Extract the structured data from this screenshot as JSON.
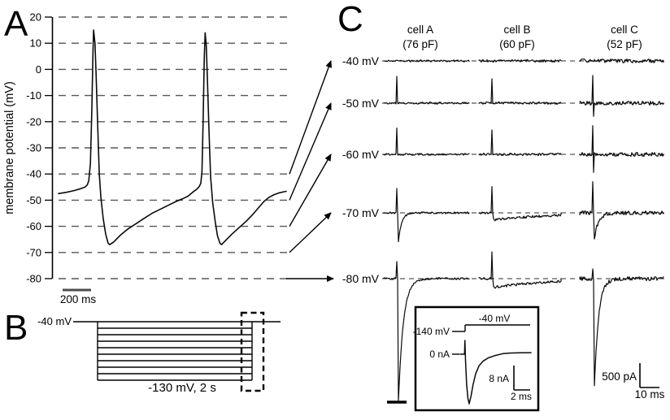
{
  "figure": {
    "panels": [
      {
        "label": "A"
      },
      {
        "label": "B"
      },
      {
        "label": "C"
      }
    ]
  },
  "colors": {
    "ink": "#000000",
    "grid_dash": "#565656",
    "baseline_dash": "#2e2e2e",
    "background": "#ffffff"
  },
  "chart_data": [
    {
      "panel": "A",
      "type": "line",
      "description": "Current-clamp recording of spontaneous action potentials",
      "ylabel": "membrane potential (mV)",
      "yticks": [
        20,
        10,
        0,
        -10,
        -20,
        -30,
        -40,
        -50,
        -60,
        -70,
        -80
      ],
      "ylim": [
        -80,
        20
      ],
      "grid": "dashed horizontal gridlines every 10 mV",
      "x_scalebar_label": "200 ms",
      "trace_units": [
        "percent_of_sweep",
        "mV"
      ],
      "trace": [
        [
          0,
          -47.5
        ],
        [
          3.5,
          -47
        ],
        [
          7,
          -46.3
        ],
        [
          9.8,
          -45.6
        ],
        [
          11.6,
          -45
        ],
        [
          12.6,
          -44.2
        ],
        [
          13.3,
          -42.5
        ],
        [
          14,
          -36
        ],
        [
          14.6,
          -16
        ],
        [
          15.1,
          6
        ],
        [
          15.4,
          15
        ],
        [
          16,
          10
        ],
        [
          16.5,
          -2
        ],
        [
          17.2,
          -22
        ],
        [
          17.9,
          -40
        ],
        [
          18.6,
          -49
        ],
        [
          19.6,
          -57
        ],
        [
          20.7,
          -63
        ],
        [
          21.8,
          -66.5
        ],
        [
          22.5,
          -67
        ],
        [
          24.2,
          -66
        ],
        [
          27,
          -63.5
        ],
        [
          30.5,
          -61
        ],
        [
          34,
          -59
        ],
        [
          37.5,
          -57
        ],
        [
          41.1,
          -55
        ],
        [
          44.6,
          -53.5
        ],
        [
          48.1,
          -52
        ],
        [
          51.6,
          -50.5
        ],
        [
          54.4,
          -49.5
        ],
        [
          56.8,
          -48.5
        ],
        [
          58.9,
          -47
        ],
        [
          60.7,
          -45.8
        ],
        [
          61.8,
          -44.8
        ],
        [
          62.5,
          -43.5
        ],
        [
          63,
          -39
        ],
        [
          63.5,
          -20
        ],
        [
          64,
          4
        ],
        [
          64.4,
          14
        ],
        [
          64.9,
          9
        ],
        [
          65.4,
          -4
        ],
        [
          66.1,
          -24
        ],
        [
          66.8,
          -41
        ],
        [
          67.7,
          -51
        ],
        [
          68.8,
          -58
        ],
        [
          69.8,
          -63.5
        ],
        [
          70.9,
          -66.5
        ],
        [
          71.6,
          -67
        ],
        [
          73.3,
          -65.5
        ],
        [
          76.1,
          -63
        ],
        [
          79.3,
          -60.5
        ],
        [
          82.5,
          -58
        ],
        [
          85.3,
          -55.5
        ],
        [
          87.7,
          -53
        ],
        [
          90.2,
          -50.5
        ],
        [
          92.3,
          -49
        ],
        [
          94.4,
          -48
        ],
        [
          96.5,
          -47.3
        ],
        [
          98.9,
          -46.8
        ],
        [
          100,
          -46.6
        ]
      ]
    },
    {
      "panel": "B",
      "type": "diagram",
      "description": "Voltage-step protocol: 2 s hyperpolarizing steps from -40 mV holding in -10 mV increments to -130 mV; dashed box marks the region expanded in C",
      "holding_label": "-40 mV",
      "holding_mV": -40,
      "step_to_mV_min": -130,
      "step_increment_mV": -10,
      "num_levels": 10,
      "step_duration": "2 s",
      "step_label": "-130 mV, 2 s"
    },
    {
      "panel": "C",
      "type": "line",
      "description": "Whole-cell currents after step offset at five potentials for three cells; capacitive spikes and slow inward tail currents (amplitudes in pA, time constants in ms)",
      "columns": [
        {
          "title": "cell A",
          "capacitance": "(76 pF)"
        },
        {
          "title": "cell B",
          "capacitance": "(60 pF)"
        },
        {
          "title": "cell C",
          "capacitance": "(52 pF)"
        }
      ],
      "scalebar_v_label": "500 pA",
      "scalebar_h_label": "10 ms",
      "rows": [
        {
          "label": "-40 mV",
          "mV": -40,
          "cells": [
            {
              "noise_pA": 20,
              "seed": 11
            },
            {
              "noise_pA": 25,
              "seed": 12
            },
            {
              "noise_pA": 40,
              "seed": 13
            }
          ]
        },
        {
          "label": "-50 mV",
          "mV": -50,
          "cells": [
            {
              "spike_pA": 550,
              "noise_pA": 20,
              "seed": 21
            },
            {
              "spike_pA": 500,
              "noise_pA": 25,
              "seed": 22
            },
            {
              "spike_pA": 570,
              "spikedown_pA": 270,
              "noise_pA": 40,
              "seed": 23
            }
          ]
        },
        {
          "label": "-60 mV",
          "mV": -60,
          "cells": [
            {
              "spike_pA": 540,
              "noise_pA": 20,
              "seed": 31
            },
            {
              "spike_pA": 500,
              "noise_pA": 25,
              "seed": 32
            },
            {
              "spike_pA": 590,
              "spikedown_pA": 370,
              "noise_pA": 40,
              "seed": 33
            }
          ]
        },
        {
          "label": "-70 mV",
          "mV": -70,
          "cells": [
            {
              "spike_pA": 500,
              "dip_pA": 580,
              "tau_ms": 1.7,
              "noise_pA": 20,
              "seed": 41
            },
            {
              "spike_pA": 540,
              "dip_pA": 150,
              "tau_ms": 30,
              "noise_pA": 25,
              "seed": 42
            },
            {
              "spike_pA": 640,
              "dip_pA": 520,
              "tau_ms": 2.1,
              "noise_pA": 40,
              "seed": 43
            }
          ]
        },
        {
          "label": "-80 mV",
          "mV": -80,
          "cells": [
            {
              "spike_pA": 350,
              "dip_pA": 2520,
              "tau_ms": 2.5,
              "clip_pA": 2517,
              "noise_pA": 20,
              "seed": 51,
              "truncated": true
            },
            {
              "spike_pA": 550,
              "dip_pA": 180,
              "tau_ms": 30,
              "noise_pA": 25,
              "seed": 52
            },
            {
              "spike_pA": 200,
              "dip_pA": 2230,
              "tau_ms": 2.1,
              "noise_pA": 40,
              "seed": 53
            }
          ]
        }
      ],
      "inset": {
        "description": "Expanded capacitive/tail current at step from -140 mV to -40 mV",
        "step_top_label": "-40 mV",
        "step_bottom_label": "-140 mV",
        "zero_label": "0 nA",
        "scalebar_v_label": "8 nA",
        "scalebar_h_label": "2 ms",
        "trace_units": [
          "ms",
          "nA"
        ],
        "trace": [
          [
            0,
            0
          ],
          [
            0.5,
            0
          ],
          [
            0.55,
            4.5
          ],
          [
            0.62,
            -2
          ],
          [
            0.75,
            -10
          ],
          [
            0.9,
            -14.5
          ],
          [
            1.05,
            -16.3
          ],
          [
            1.25,
            -14
          ],
          [
            1.5,
            -10
          ],
          [
            1.8,
            -6.5
          ],
          [
            2.2,
            -3.8
          ],
          [
            2.7,
            -2.2
          ],
          [
            3.3,
            -1.2
          ],
          [
            4,
            -0.5
          ],
          [
            5,
            0.2
          ],
          [
            6,
            0.4
          ],
          [
            7,
            0.45
          ],
          [
            8.3,
            0.5
          ]
        ]
      }
    }
  ]
}
